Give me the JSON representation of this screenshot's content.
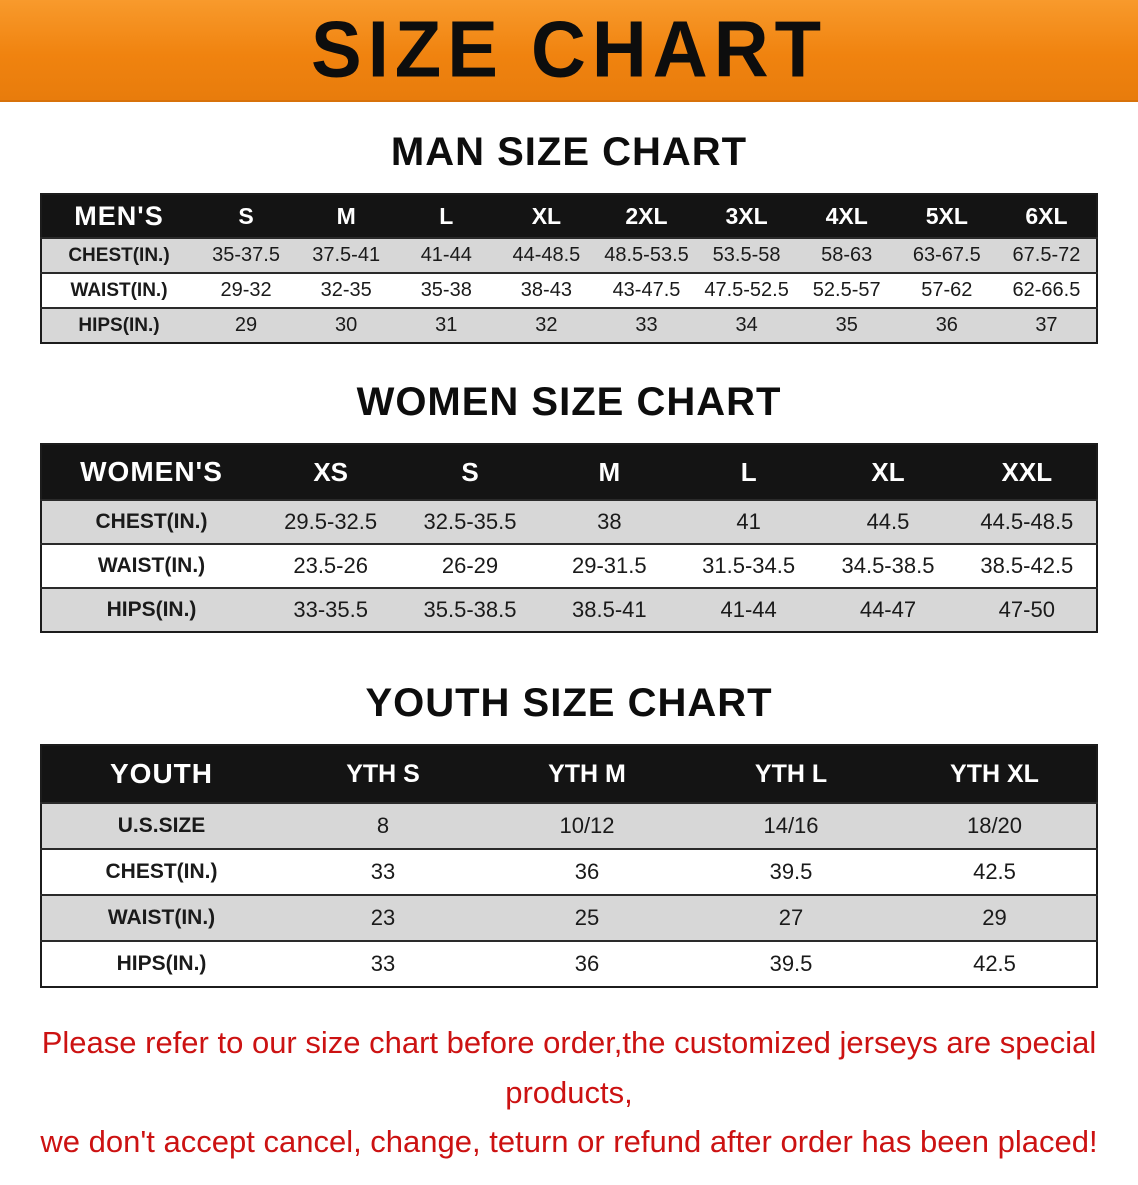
{
  "banner": {
    "title": "SIZE CHART",
    "background_color": "#f0830f"
  },
  "chart_data": [
    {
      "type": "table",
      "title": "MAN SIZE CHART",
      "columns": [
        "MEN'S",
        "S",
        "M",
        "L",
        "XL",
        "2XL",
        "3XL",
        "4XL",
        "5XL",
        "6XL"
      ],
      "rows": [
        [
          "CHEST(IN.)",
          "35-37.5",
          "37.5-41",
          "41-44",
          "44-48.5",
          "48.5-53.5",
          "53.5-58",
          "58-63",
          "63-67.5",
          "67.5-72"
        ],
        [
          "WAIST(IN.)",
          "29-32",
          "32-35",
          "35-38",
          "38-43",
          "43-47.5",
          "47.5-52.5",
          "52.5-57",
          "57-62",
          "62-66.5"
        ],
        [
          "HIPS(IN.)",
          "29",
          "30",
          "31",
          "32",
          "33",
          "34",
          "35",
          "36",
          "37"
        ]
      ]
    },
    {
      "type": "table",
      "title": "WOMEN SIZE CHART",
      "columns": [
        "WOMEN'S",
        "XS",
        "S",
        "M",
        "L",
        "XL",
        "XXL"
      ],
      "rows": [
        [
          "CHEST(IN.)",
          "29.5-32.5",
          "32.5-35.5",
          "38",
          "41",
          "44.5",
          "44.5-48.5"
        ],
        [
          "WAIST(IN.)",
          "23.5-26",
          "26-29",
          "29-31.5",
          "31.5-34.5",
          "34.5-38.5",
          "38.5-42.5"
        ],
        [
          "HIPS(IN.)",
          "33-35.5",
          "35.5-38.5",
          "38.5-41",
          "41-44",
          "44-47",
          "47-50"
        ]
      ]
    },
    {
      "type": "table",
      "title": "YOUTH SIZE CHART",
      "columns": [
        "YOUTH",
        "YTH S",
        "YTH M",
        "YTH L",
        "YTH XL"
      ],
      "rows": [
        [
          "U.S.SIZE",
          "8",
          "10/12",
          "14/16",
          "18/20"
        ],
        [
          "CHEST(IN.)",
          "33",
          "36",
          "39.5",
          "42.5"
        ],
        [
          "WAIST(IN.)",
          "23",
          "25",
          "27",
          "29"
        ],
        [
          "HIPS(IN.)",
          "33",
          "36",
          "39.5",
          "42.5"
        ]
      ]
    }
  ],
  "footer": {
    "line1": "Please refer to our size chart before order,the customized jerseys are special products,",
    "line2": "we don't accept cancel, change, teturn or refund after order has been placed!",
    "text_color": "#cc1212"
  }
}
